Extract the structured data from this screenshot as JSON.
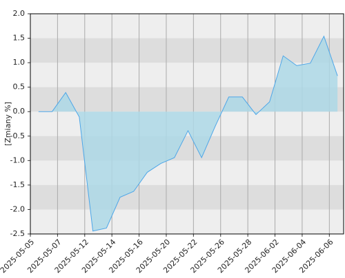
{
  "chart_data": {
    "type": "area",
    "y_label": "[Zmiany %]",
    "x": [
      0,
      1,
      2,
      3,
      4,
      5,
      6,
      7,
      8,
      9,
      10,
      11,
      12,
      13,
      14,
      15,
      16,
      17,
      18,
      19,
      20,
      21,
      22
    ],
    "series": [
      {
        "color": "#4da6e8",
        "values": [
          0.0,
          0.0,
          0.39,
          -0.11,
          -2.44,
          -2.38,
          -1.75,
          -1.63,
          -1.24,
          -1.06,
          -0.94,
          -0.39,
          -0.94,
          -0.3,
          0.3,
          0.3,
          -0.06,
          0.2,
          1.14,
          0.94,
          0.99,
          1.54,
          0.73
        ]
      }
    ],
    "xlim": [
      -0.6,
      22.45
    ],
    "xticks": [
      {
        "value": -0.6,
        "label": "2025-05-05"
      },
      {
        "value": 1.4,
        "label": "2025-05-07"
      },
      {
        "value": 3.4,
        "label": "2025-05-12"
      },
      {
        "value": 5.4,
        "label": "2025-05-14"
      },
      {
        "value": 7.4,
        "label": "2025-05-16"
      },
      {
        "value": 9.4,
        "label": "2025-05-20"
      },
      {
        "value": 11.4,
        "label": "2025-05-22"
      },
      {
        "value": 13.4,
        "label": "2025-05-26"
      },
      {
        "value": 15.4,
        "label": "2025-05-28"
      },
      {
        "value": 17.4,
        "label": "2025-06-02"
      },
      {
        "value": 19.4,
        "label": "2025-06-04"
      },
      {
        "value": 21.4,
        "label": "2025-06-06"
      }
    ],
    "ylim": [
      -2.5,
      2
    ],
    "yticks": [
      -2.5,
      {
        "value": -2,
        "label": "-2.0"
      },
      -1.5,
      {
        "value": -1,
        "label": "-1.0"
      },
      -0.5,
      {
        "value": 0,
        "label": "0.0"
      },
      0.5,
      {
        "value": 1,
        "label": "1.0"
      },
      1.5,
      {
        "value": 2,
        "label": "2.0"
      }
    ],
    "grid": true
  }
}
